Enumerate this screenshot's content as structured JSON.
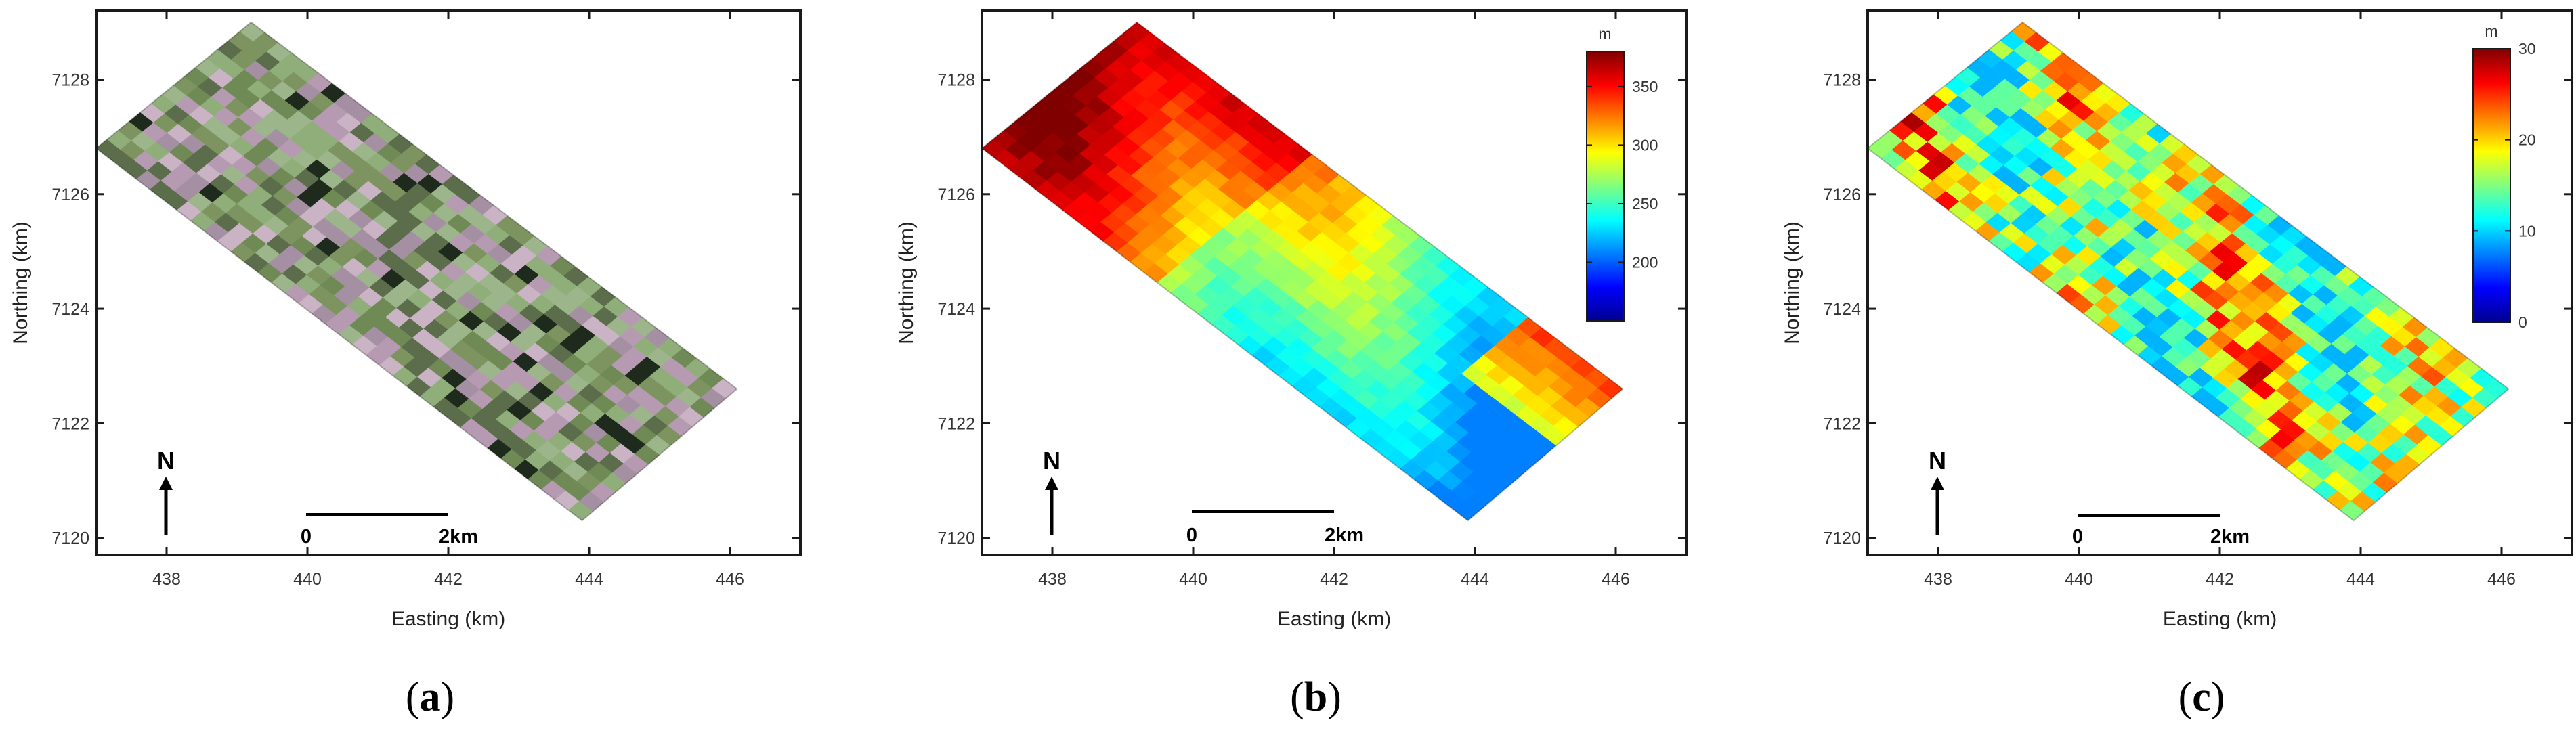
{
  "panels": [
    {
      "id": "a",
      "caption_letter": "a",
      "kind": "optical-image",
      "title": "",
      "xlabel": "Easting (km)",
      "ylabel": "Northing (km)",
      "x_ticks": [
        "438",
        "440",
        "442",
        "444",
        "446"
      ],
      "y_ticks": [
        "7120",
        "7122",
        "7124",
        "7126",
        "7128"
      ],
      "north_label": "N",
      "scalebar_start": "0",
      "scalebar_end": "2km",
      "palette": [
        "#7d9460",
        "#a58fa3",
        "#6f8a55",
        "#b69ab2",
        "#8fae79",
        "#5b6d4b",
        "#c9b3c4",
        "#9cb58a"
      ]
    },
    {
      "id": "b",
      "caption_letter": "b",
      "kind": "elevation",
      "xlabel": "Easting (km)",
      "ylabel": "Northing (km)",
      "x_ticks": [
        "438",
        "440",
        "442",
        "444",
        "446"
      ],
      "y_ticks": [
        "7120",
        "7122",
        "7124",
        "7126",
        "7128"
      ],
      "north_label": "N",
      "scalebar_start": "0",
      "scalebar_end": "2km",
      "colorbar_unit": "m",
      "colorbar_min": 150,
      "colorbar_max": 380,
      "colorbar_ticks": [
        "200",
        "250",
        "300",
        "350"
      ]
    },
    {
      "id": "c",
      "caption_letter": "c",
      "kind": "height",
      "xlabel": "Easting (km)",
      "ylabel": "Northing (km)",
      "x_ticks": [
        "438",
        "440",
        "442",
        "444",
        "446"
      ],
      "y_ticks": [
        "7120",
        "7122",
        "7124",
        "7126",
        "7128"
      ],
      "north_label": "N",
      "scalebar_start": "0",
      "scalebar_end": "2km",
      "colorbar_unit": "m",
      "colorbar_min": 0,
      "colorbar_max": 30,
      "colorbar_ticks": [
        "0",
        "10",
        "20",
        "30"
      ]
    }
  ],
  "map_extent": {
    "easting_range": [
      437,
      447
    ],
    "northing_range": [
      7119.7,
      7129.2
    ],
    "footprint_easting": [
      437.0,
      439.2,
      446.1,
      443.9
    ],
    "footprint_northing": [
      7126.8,
      7129.0,
      7122.6,
      7120.3
    ]
  },
  "colors": {
    "frame": "#1a1a1a",
    "jet": [
      "#00008f",
      "#0000ff",
      "#00ffff",
      "#ffff00",
      "#ff0000",
      "#800000"
    ]
  }
}
